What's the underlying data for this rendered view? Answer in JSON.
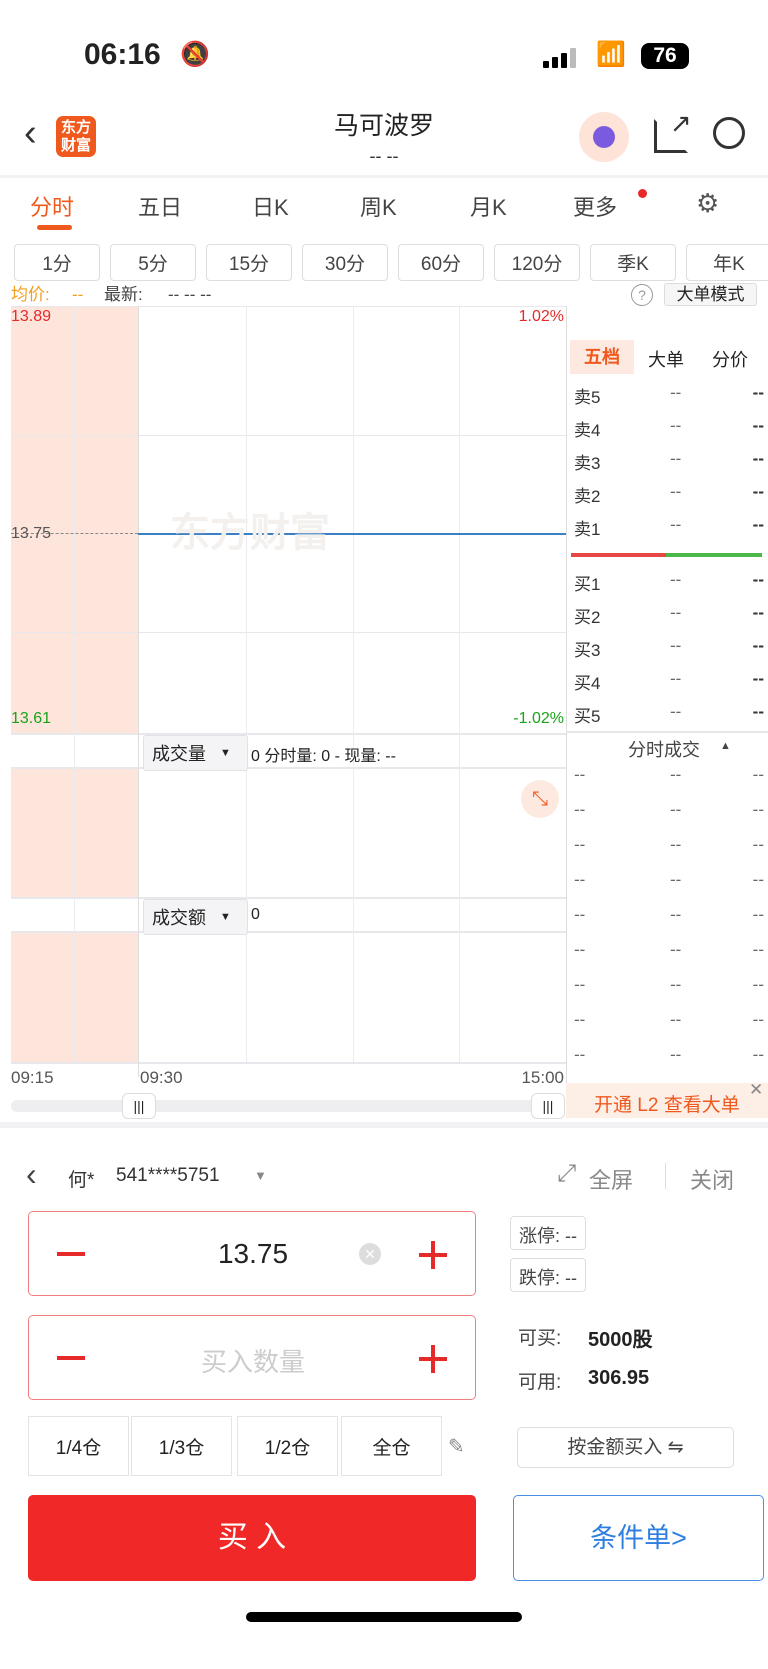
{
  "status": {
    "time": "06:16",
    "battery": "76"
  },
  "header": {
    "title": "马可波罗",
    "subtitle": "-- --",
    "logo": "东方财富"
  },
  "tabs": [
    {
      "label": "分时",
      "active": true
    },
    {
      "label": "五日"
    },
    {
      "label": "日K"
    },
    {
      "label": "周K"
    },
    {
      "label": "月K"
    },
    {
      "label": "更多"
    }
  ],
  "intervals": [
    "1分",
    "5分",
    "15分",
    "30分",
    "60分",
    "120分",
    "季K",
    "年K"
  ],
  "info": {
    "avg_label": "均价:",
    "avg_value": "--",
    "latest_label": "最新:",
    "latest_value": "-- -- --",
    "big_order_mode": "大单模式"
  },
  "chart": {
    "high": "13.89",
    "mid": "13.75",
    "low": "13.61",
    "high_pct": "1.02%",
    "low_pct": "-1.02%",
    "watermark": "东方财富",
    "times": [
      "09:15",
      "09:30",
      "15:00"
    ],
    "volume_select": "成交量",
    "volume_info": "0 分时量: 0 - 现量: --",
    "amount_select": "成交额",
    "amount_info": "0",
    "line_color": "#3b7fc4",
    "up_color": "#e62a2a",
    "down_color": "#1aa31a"
  },
  "orderbook": {
    "tabs": [
      "五档",
      "大单",
      "分价"
    ],
    "sell": [
      {
        "label": "卖5",
        "p": "--",
        "v": "--"
      },
      {
        "label": "卖4",
        "p": "--",
        "v": "--"
      },
      {
        "label": "卖3",
        "p": "--",
        "v": "--"
      },
      {
        "label": "卖2",
        "p": "--",
        "v": "--"
      },
      {
        "label": "卖1",
        "p": "--",
        "v": "--"
      }
    ],
    "buy": [
      {
        "label": "买1",
        "p": "--",
        "v": "--"
      },
      {
        "label": "买2",
        "p": "--",
        "v": "--"
      },
      {
        "label": "买3",
        "p": "--",
        "v": "--"
      },
      {
        "label": "买4",
        "p": "--",
        "v": "--"
      },
      {
        "label": "买5",
        "p": "--",
        "v": "--"
      }
    ],
    "trades_title": "分时成交",
    "trades": [
      [
        "--",
        "--",
        "--"
      ],
      [
        "--",
        "--",
        "--"
      ],
      [
        "--",
        "--",
        "--"
      ],
      [
        "--",
        "--",
        "--"
      ],
      [
        "--",
        "--",
        "--"
      ],
      [
        "--",
        "--",
        "--"
      ],
      [
        "--",
        "--",
        "--"
      ],
      [
        "--",
        "--",
        "--"
      ],
      [
        "--",
        "--",
        "--"
      ]
    ],
    "l2_banner": "开通 L2 查看大单"
  },
  "trade": {
    "account_name": "何*",
    "account_no": "541****5751",
    "fullscreen": "全屏",
    "close": "关闭",
    "price": "13.75",
    "qty_placeholder": "买入数量",
    "limit_up_label": "涨停:",
    "limit_up": "--",
    "limit_down_label": "跌停:",
    "limit_down": "--",
    "can_buy_label": "可买:",
    "can_buy": "5000股",
    "available_label": "可用:",
    "available": "306.95",
    "positions": [
      "1/4仓",
      "1/3仓",
      "1/2仓",
      "全仓"
    ],
    "by_amount": "按金额买入 ⇋",
    "buy": "买 入",
    "conditional": "条件单>"
  }
}
